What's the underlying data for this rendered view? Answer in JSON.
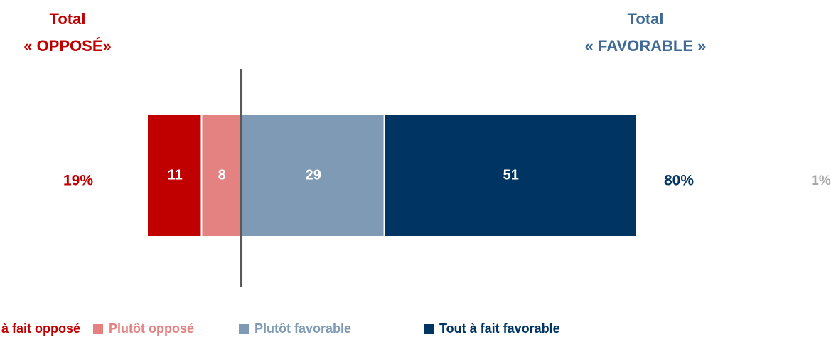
{
  "chart_data": {
    "type": "stacked_bar_horizontal",
    "left_header": [
      "Total",
      "« OPPOSÉ»"
    ],
    "right_header": [
      "Total",
      "« FAVORABLE »"
    ],
    "series": [
      {
        "name": "Tout à fait opposé",
        "color": "#c00000",
        "values": [
          11
        ]
      },
      {
        "name": "Plutôt opposé",
        "color": "#e48181",
        "values": [
          8
        ]
      },
      {
        "name": "Plutôt favorable",
        "color": "#7f9ab5",
        "values": [
          29
        ]
      },
      {
        "name": "Tout à fait favorable",
        "color": "#003462",
        "values": [
          51
        ]
      }
    ],
    "totals": {
      "values": [
        19,
        80,
        1
      ],
      "value_labels": [
        "19%",
        "80%",
        "1%"
      ],
      "colors": [
        "#c00000",
        "#003462",
        "#a6a6a6"
      ]
    }
  }
}
